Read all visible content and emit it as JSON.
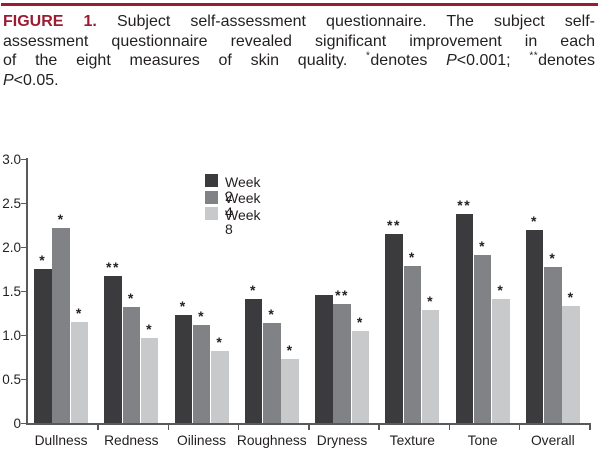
{
  "figure": {
    "accent_color": "#9b1b33",
    "text_color": "#231f20",
    "axis_color": "#58595b",
    "caption": {
      "lines": [
        {
          "justify": true,
          "segments": [
            {
              "text": "FIGURE 1.",
              "style": "label"
            },
            {
              "text": " Subject self-assessment questionnaire. The subject self-",
              "style": "normal"
            }
          ]
        },
        {
          "justify": true,
          "segments": [
            {
              "text": "assessment questionnaire revealed significant improvement in each",
              "style": "normal"
            }
          ]
        },
        {
          "justify": true,
          "segments": [
            {
              "text": "of the eight measures of skin quality. ",
              "style": "normal"
            },
            {
              "text": "*",
              "style": "sup"
            },
            {
              "text": "denotes ",
              "style": "normal"
            },
            {
              "text": "P",
              "style": "italic"
            },
            {
              "text": "<0.001; ",
              "style": "normal"
            },
            {
              "text": "**",
              "style": "sup"
            },
            {
              "text": "denotes",
              "style": "normal"
            }
          ]
        },
        {
          "justify": false,
          "segments": [
            {
              "text": "P",
              "style": "italic"
            },
            {
              "text": "<0.05.",
              "style": "normal"
            }
          ]
        }
      ]
    }
  },
  "chart_data": {
    "type": "bar",
    "title": "",
    "xlabel": "",
    "ylabel": "",
    "categories": [
      "Dullness",
      "Redness",
      "Oiliness",
      "Roughness",
      "Dryness",
      "Texture",
      "Tone",
      "Overall"
    ],
    "series": [
      {
        "name": "Week 2",
        "color": "#3b3b3d",
        "values": [
          1.75,
          1.67,
          1.23,
          1.41,
          1.45,
          2.15,
          2.38,
          2.19
        ],
        "annotations": [
          "*",
          "**",
          "*",
          "*",
          "",
          "**",
          "**",
          "*"
        ]
      },
      {
        "name": "Week 4",
        "color": "#808285",
        "values": [
          2.22,
          1.32,
          1.11,
          1.14,
          1.35,
          1.78,
          1.91,
          1.77
        ],
        "annotations": [
          "*",
          "*",
          "*",
          "*",
          "**",
          "*",
          "*",
          "*"
        ]
      },
      {
        "name": "Week 8",
        "color": "#c8c9ca",
        "values": [
          1.15,
          0.97,
          0.82,
          0.73,
          1.05,
          1.28,
          1.41,
          1.33
        ],
        "annotations": [
          "*",
          "*",
          "*",
          "*",
          "*",
          "*",
          "*",
          "*"
        ]
      }
    ],
    "ylim": [
      0,
      3.0
    ],
    "yticks": [
      0,
      0.5,
      1.0,
      1.5,
      2.0,
      2.5,
      3.0
    ],
    "ytick_labels": [
      "0",
      "0.5",
      "1.0",
      "1.5",
      "2.0",
      "2.5",
      "3.0"
    ],
    "grid": false,
    "legend_position": "upper-center-left"
  }
}
